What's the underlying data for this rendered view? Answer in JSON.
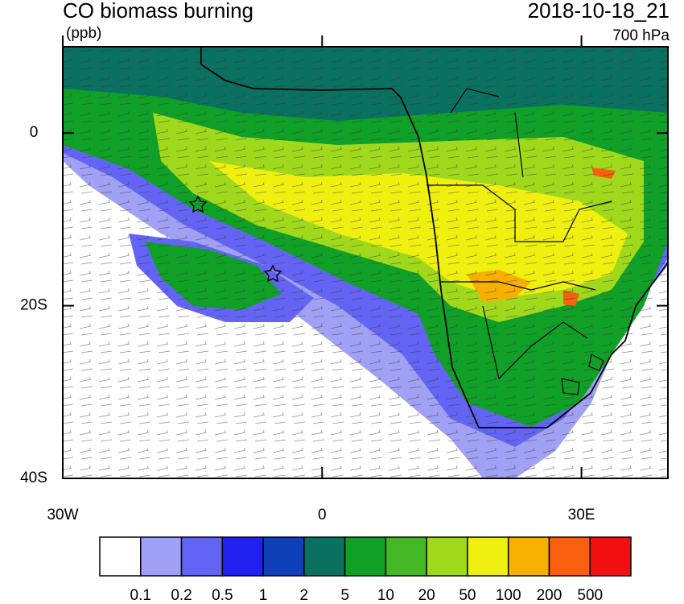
{
  "header": {
    "title": "CO biomass burning",
    "units": "(ppb)",
    "time": "2018-10-18_21",
    "level": "700 hPa"
  },
  "map": {
    "lon_range": [
      -30,
      40
    ],
    "lat_range": [
      -40,
      10
    ],
    "lon_ticks": [
      {
        "value": -30,
        "label": "30W"
      },
      {
        "value": 0,
        "label": "0"
      },
      {
        "value": 30,
        "label": "30E"
      }
    ],
    "lat_ticks": [
      {
        "value": 0,
        "label": "0"
      },
      {
        "value": -20,
        "label": "20S"
      },
      {
        "value": -40,
        "label": "40S"
      }
    ]
  },
  "colorbar": {
    "colors": [
      "#ffffff",
      "#a0a0f4",
      "#6464f4",
      "#2020f0",
      "#1040b8",
      "#0a7060",
      "#10a028",
      "#44b824",
      "#a0d81c",
      "#f0f010",
      "#f8b000",
      "#f86010",
      "#f01010"
    ],
    "levels": [
      0.1,
      0.2,
      0.5,
      1,
      2,
      5,
      10,
      20,
      50,
      100,
      200,
      500
    ]
  }
}
